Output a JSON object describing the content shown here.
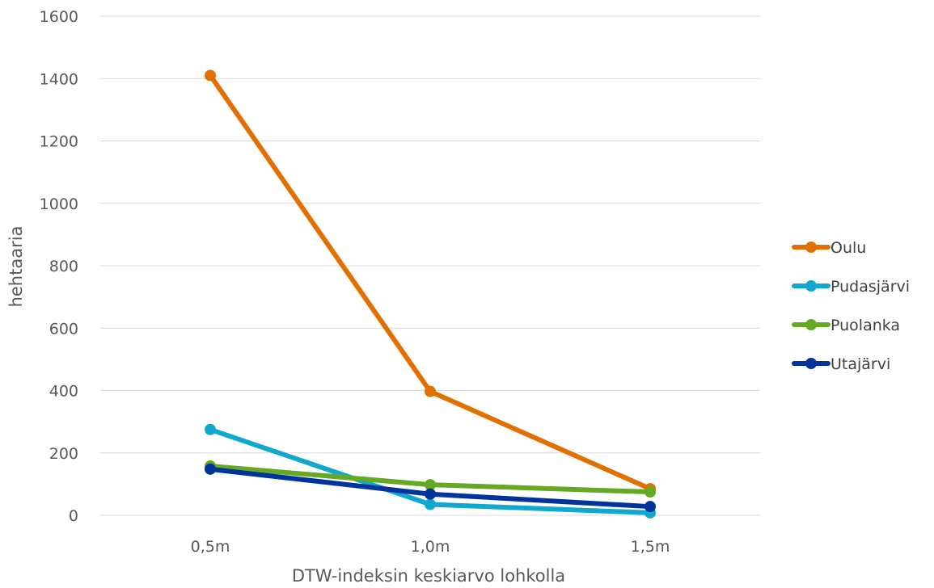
{
  "chart_data": {
    "type": "line",
    "title": "",
    "xlabel": "DTW-indeksin keskiarvo lohkolla",
    "ylabel": "hehtaaria",
    "categories": [
      "0,5m",
      "1,0m",
      "1,5m"
    ],
    "ylim": [
      0,
      1600
    ],
    "yticks": [
      0,
      200,
      400,
      600,
      800,
      1000,
      1200,
      1400,
      1600
    ],
    "grid": true,
    "legend_position": "right",
    "series": [
      {
        "name": "Oulu",
        "color": "#E17000",
        "values": [
          1410,
          397,
          85
        ]
      },
      {
        "name": "Pudasjärvi",
        "color": "#10A8CF",
        "values": [
          275,
          35,
          8
        ]
      },
      {
        "name": "Puolanka",
        "color": "#64A823",
        "values": [
          158,
          98,
          75
        ]
      },
      {
        "name": "Utajärvi",
        "color": "#00349C",
        "values": [
          148,
          68,
          28
        ]
      }
    ]
  }
}
